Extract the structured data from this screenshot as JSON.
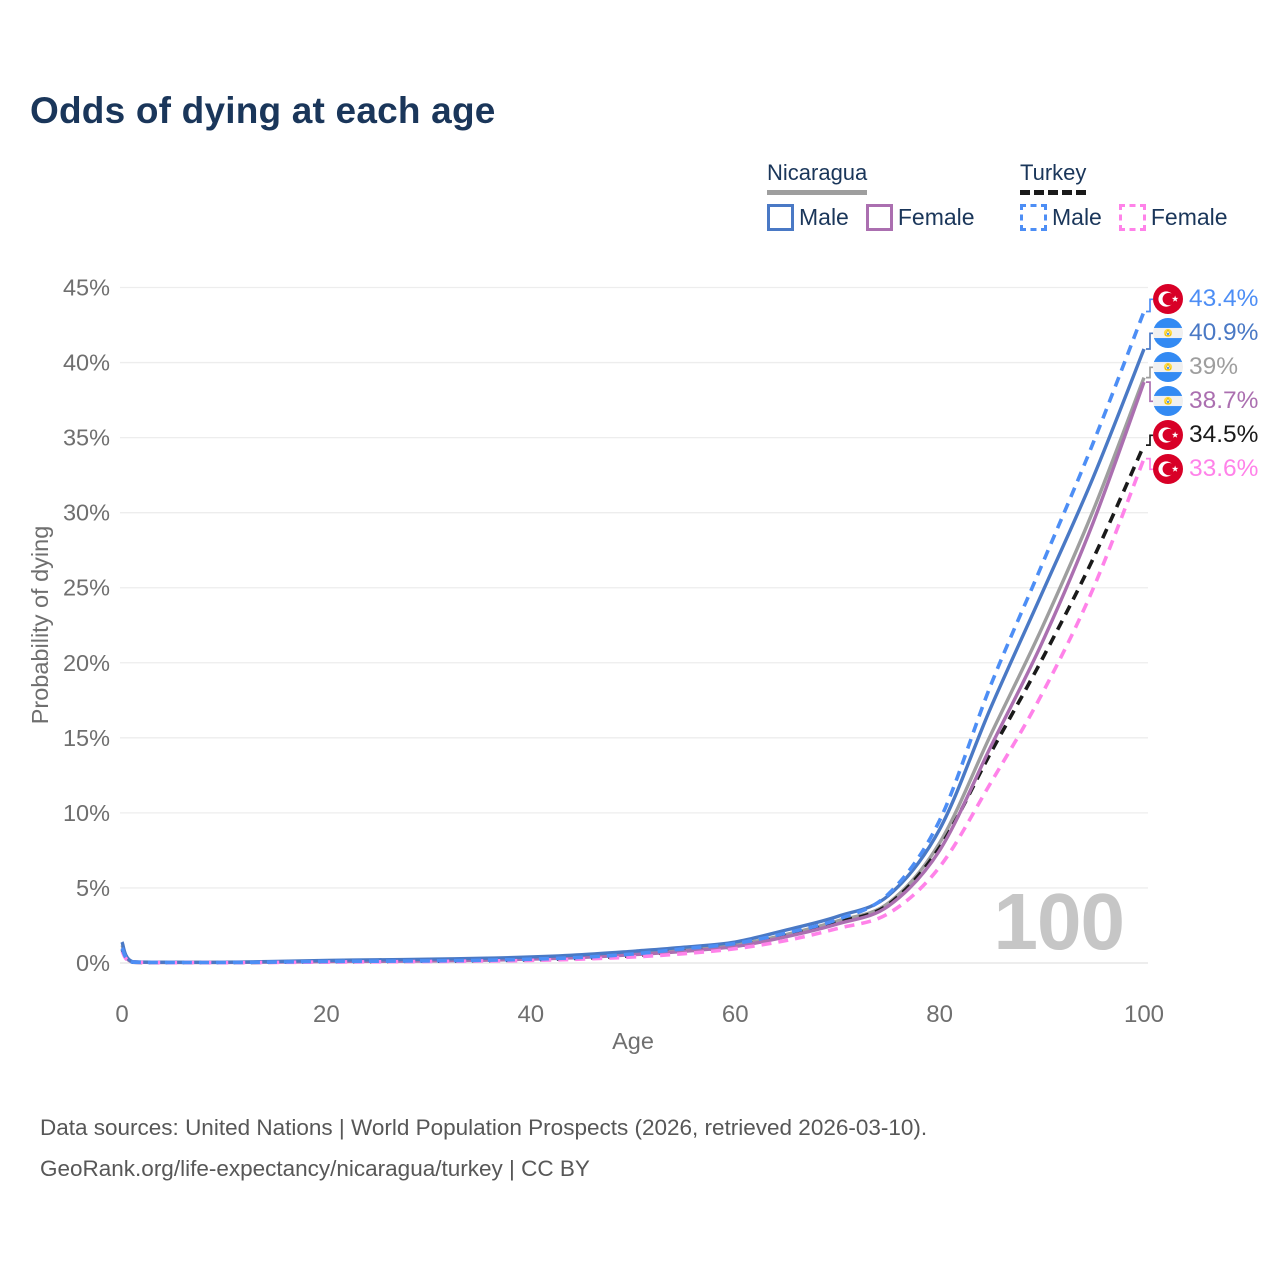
{
  "title": "Odds of dying at each age",
  "legend": {
    "groups": [
      {
        "label": "Nicaragua",
        "underline_style": "solid",
        "underline_color": "#9e9e9e",
        "items": [
          {
            "label": "Male",
            "color": "#4a79c5",
            "dashed": false
          },
          {
            "label": "Female",
            "color": "#ab6fb0",
            "dashed": false
          }
        ]
      },
      {
        "label": "Turkey",
        "underline_style": "dashed",
        "underline_color": "#1a1a1a",
        "items": [
          {
            "label": "Male",
            "color": "#4d8ef5",
            "dashed": true
          },
          {
            "label": "Female",
            "color": "#ff82e9",
            "dashed": true
          }
        ]
      }
    ]
  },
  "axes": {
    "x": {
      "label": "Age",
      "ticks": [
        "0",
        "20",
        "40",
        "60",
        "80",
        "100"
      ],
      "range": [
        0,
        100
      ]
    },
    "y": {
      "label": "Probability of dying",
      "ticks": [
        "0%",
        "5%",
        "10%",
        "15%",
        "20%",
        "25%",
        "30%",
        "35%",
        "40%",
        "45%"
      ],
      "range": [
        0,
        45
      ]
    }
  },
  "watermark": "100",
  "footer": {
    "line1": "Data sources: United Nations | World Population Prospects (2026, retrieved 2026-03-10).",
    "line2": "GeoRank.org/life-expectancy/nicaragua/turkey | CC BY"
  },
  "colors": {
    "title_text": "#1a365a",
    "axis_text": "#6f6f6f",
    "gridline": "#ededed",
    "watermark": "#c6c6c6",
    "turkey_flag_red": "#d80027",
    "nicaragua_flag_blue": "#338af3",
    "nicaragua_flag_gold": "#ffda44"
  },
  "chart_data": {
    "type": "line",
    "title": "Odds of dying at each age",
    "xlabel": "Age",
    "ylabel": "Probability of dying",
    "xlim": [
      0,
      100
    ],
    "ylim": [
      0,
      45
    ],
    "y_unit": "%",
    "grid": "horizontal-only",
    "legend_position": "top-right",
    "hovered_age_watermark": "100",
    "x": [
      0,
      1,
      5,
      10,
      15,
      20,
      25,
      30,
      35,
      40,
      45,
      50,
      55,
      60,
      65,
      70,
      75,
      80,
      85,
      90,
      95,
      100
    ],
    "series": [
      {
        "id": "turkey-male",
        "name": "Turkey Male",
        "country": "Turkey",
        "sex": "male",
        "style": "dashed",
        "color": "#4d8ef5",
        "flag": "turkey",
        "end_label": "43.4%",
        "end_value": 43.4,
        "values": [
          1.0,
          0.06,
          0.03,
          0.03,
          0.06,
          0.1,
          0.12,
          0.14,
          0.18,
          0.25,
          0.38,
          0.6,
          0.95,
          1.3,
          2.0,
          2.9,
          4.6,
          9.5,
          18.5,
          26.5,
          34.6,
          43.4
        ]
      },
      {
        "id": "nicaragua-male",
        "name": "Nicaragua Male",
        "country": "Nicaragua",
        "sex": "male",
        "style": "solid",
        "color": "#4a79c5",
        "flag": "nicaragua",
        "end_label": "40.9%",
        "end_value": 40.9,
        "values": [
          1.4,
          0.09,
          0.05,
          0.05,
          0.1,
          0.17,
          0.21,
          0.25,
          0.31,
          0.4,
          0.55,
          0.78,
          1.05,
          1.4,
          2.2,
          3.1,
          4.5,
          8.9,
          17.0,
          24.6,
          32.3,
          40.9
        ]
      },
      {
        "id": "nicaragua-total",
        "name": "Nicaragua",
        "country": "Nicaragua",
        "sex": "both",
        "style": "solid",
        "color": "#9e9e9e",
        "flag": "nicaragua",
        "end_label": "39%",
        "end_value": 39.0,
        "values": [
          1.2,
          0.08,
          0.04,
          0.04,
          0.08,
          0.13,
          0.16,
          0.19,
          0.24,
          0.32,
          0.45,
          0.65,
          0.9,
          1.2,
          1.9,
          2.8,
          4.0,
          8.0,
          15.2,
          22.3,
          30.1,
          39.0
        ]
      },
      {
        "id": "nicaragua-female",
        "name": "Nicaragua Female",
        "country": "Nicaragua",
        "sex": "female",
        "style": "solid",
        "color": "#ab6fb0",
        "flag": "nicaragua",
        "end_label": "38.7%",
        "end_value": 38.7,
        "values": [
          1.0,
          0.07,
          0.04,
          0.04,
          0.06,
          0.09,
          0.11,
          0.14,
          0.18,
          0.26,
          0.37,
          0.55,
          0.78,
          1.1,
          1.75,
          2.6,
          3.8,
          7.5,
          14.4,
          21.3,
          29.3,
          38.7
        ]
      },
      {
        "id": "turkey-total",
        "name": "Turkey",
        "country": "Turkey",
        "sex": "both",
        "style": "dashed",
        "color": "#1a1a1a",
        "flag": "turkey",
        "end_label": "34.5%",
        "end_value": 34.5,
        "values": [
          0.9,
          0.05,
          0.03,
          0.03,
          0.05,
          0.08,
          0.1,
          0.12,
          0.15,
          0.21,
          0.32,
          0.5,
          0.8,
          1.1,
          1.8,
          2.7,
          3.9,
          7.7,
          14.0,
          20.2,
          26.9,
          34.5
        ]
      },
      {
        "id": "turkey-female",
        "name": "Turkey Female",
        "country": "Turkey",
        "sex": "female",
        "style": "dashed",
        "color": "#ff82e9",
        "flag": "turkey",
        "end_label": "33.6%",
        "end_value": 33.6,
        "values": [
          0.8,
          0.05,
          0.02,
          0.02,
          0.04,
          0.06,
          0.08,
          0.1,
          0.13,
          0.17,
          0.26,
          0.4,
          0.62,
          0.95,
          1.5,
          2.3,
          3.3,
          6.4,
          12.0,
          17.9,
          24.9,
          33.6
        ]
      }
    ]
  }
}
